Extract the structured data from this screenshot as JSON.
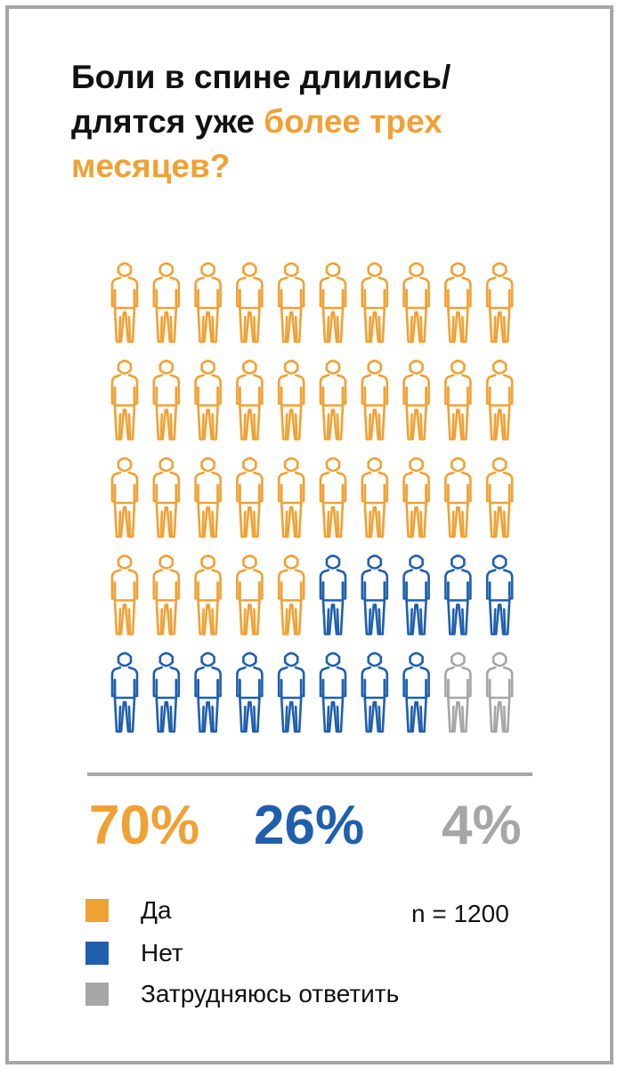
{
  "title": {
    "line1": "Боли в спине длились/",
    "line2_plain": "длятся уже ",
    "line2_accent": "более трех",
    "line3_accent": "месяцев?"
  },
  "chart_data": {
    "type": "pictograph",
    "total_icons": 50,
    "columns": 10,
    "rows": 5,
    "categories": [
      "Да",
      "Нет",
      "Затрудняюсь ответить"
    ],
    "values": [
      70,
      26,
      4
    ],
    "value_labels": [
      "70%",
      "26%",
      "4%"
    ],
    "colors": [
      "#f0a133",
      "#1f5fae",
      "#a6a6a6"
    ],
    "legend_position": "bottom-left",
    "sample_size": "n = 1200"
  },
  "colors": {
    "accent": "#f0a133",
    "blue": "#1f5fae",
    "gray": "#a6a6a6",
    "text": "#111111"
  }
}
